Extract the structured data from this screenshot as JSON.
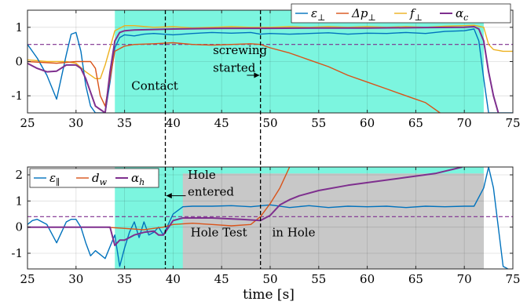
{
  "figure": {
    "xlabel": "time [s]",
    "x_tick_labels": [
      "25",
      "30",
      "35",
      "40",
      "45",
      "50",
      "55",
      "60",
      "65",
      "70",
      "75"
    ],
    "markers": [
      {
        "x": 39.2,
        "color": "#000000"
      },
      {
        "x": 49.0,
        "color": "#000000"
      }
    ],
    "colors": {
      "contact_region": "#7cf5df",
      "hole_region": "#c8c8c8",
      "blue": "#0072bd",
      "orange": "#d95319",
      "yellow": "#edb120",
      "purple": "#7e2f8e",
      "threshold": "#7e2f8e"
    }
  },
  "chart_data": [
    {
      "type": "line",
      "xlim": [
        25,
        75
      ],
      "ylim": [
        -1.5,
        1.5
      ],
      "y_ticks": [
        -1,
        0,
        1
      ],
      "y_tick_labels": [
        "-1",
        "0",
        "1"
      ],
      "grid": true,
      "legend_position": "top-right",
      "shaded_regions": [
        {
          "x": [
            34,
            72
          ],
          "color": "contact_region"
        }
      ],
      "threshold": {
        "y": 0.5,
        "style": "dashed"
      },
      "annotations": [
        {
          "text": "Contact",
          "x": 35.7,
          "y": -0.82
        },
        {
          "text": "screwing",
          "x": 44.1,
          "y": 0.22
        },
        {
          "text": "started",
          "x": 44.1,
          "y": -0.3
        }
      ],
      "arrows": [
        {
          "from": [
            47.6,
            -0.4
          ],
          "to": [
            48.9,
            -0.4
          ]
        }
      ],
      "series": [
        {
          "name": "ε⊥",
          "color": "blue",
          "x": [
            25,
            26,
            27,
            28,
            29,
            29.5,
            30,
            30.5,
            31,
            31.5,
            32,
            33,
            33.5,
            34,
            34.5,
            35,
            36,
            37,
            38,
            39,
            40,
            42,
            44,
            46,
            48,
            49,
            50,
            52,
            54,
            56,
            58,
            60,
            62,
            64,
            66,
            68,
            70,
            71,
            71.5,
            72,
            72.5,
            73,
            74,
            75
          ],
          "y": [
            0.5,
            0.1,
            -0.4,
            -1.1,
            0.2,
            0.8,
            0.85,
            0.3,
            -0.7,
            -1.3,
            -1.5,
            -1.5,
            -0.6,
            0.4,
            0.7,
            0.78,
            0.75,
            0.8,
            0.82,
            0.8,
            0.78,
            0.82,
            0.85,
            0.83,
            0.85,
            0.8,
            0.82,
            0.8,
            0.82,
            0.84,
            0.8,
            0.83,
            0.82,
            0.85,
            0.82,
            0.88,
            0.9,
            0.95,
            0.6,
            -0.5,
            -1.5,
            -1.5,
            -1.5,
            -1.5
          ]
        },
        {
          "name": "Δp⊥",
          "color": "orange",
          "x": [
            25,
            28,
            30,
            31.5,
            32,
            32.5,
            33,
            33.5,
            34,
            35,
            36,
            38,
            40,
            42,
            44,
            46,
            48,
            49,
            50,
            52,
            54,
            56,
            58,
            60,
            62,
            64,
            66,
            67.5
          ],
          "y": [
            0,
            -0.05,
            0,
            0,
            -0.2,
            -1.0,
            -1.3,
            -0.5,
            0.3,
            0.45,
            0.5,
            0.52,
            0.55,
            0.5,
            0.48,
            0.5,
            0.52,
            0.5,
            0.4,
            0.25,
            0.05,
            -0.15,
            -0.4,
            -0.6,
            -0.8,
            -1.0,
            -1.2,
            -1.5
          ]
        },
        {
          "name": "f⊥",
          "color": "yellow",
          "x": [
            25,
            27,
            29,
            30,
            31,
            32,
            32.5,
            33,
            33.5,
            34,
            35,
            36,
            38,
            40,
            42,
            44,
            46,
            48,
            50,
            52,
            54,
            56,
            58,
            60,
            62,
            64,
            66,
            68,
            70,
            71,
            72,
            72.5,
            73,
            74,
            75
          ],
          "y": [
            0.05,
            0,
            0,
            -0.05,
            -0.3,
            -0.5,
            -0.5,
            -0.1,
            0.4,
            0.9,
            1.05,
            1.05,
            1.0,
            1.02,
            0.98,
            1.0,
            1.02,
            1.0,
            1.0,
            1.02,
            1.0,
            1.02,
            1.0,
            1.02,
            1.0,
            1.02,
            1.0,
            1.03,
            1.05,
            1.06,
            1.0,
            0.5,
            0.35,
            0.3,
            0.3
          ]
        },
        {
          "name": "αc",
          "color": "purple",
          "x": [
            25,
            26,
            27,
            28,
            29,
            30,
            30.5,
            31,
            32,
            33,
            33.5,
            34,
            34.5,
            35,
            36,
            40,
            45,
            50,
            55,
            60,
            65,
            70,
            71,
            71.5,
            72,
            72.5,
            73,
            73.5
          ],
          "y": [
            -0.05,
            -0.2,
            -0.3,
            -0.28,
            -0.1,
            -0.1,
            -0.2,
            -0.5,
            -1.3,
            -1.5,
            -0.3,
            0.6,
            0.85,
            0.9,
            0.92,
            0.95,
            0.97,
            0.97,
            0.98,
            0.98,
            0.99,
            1.0,
            1.02,
            0.95,
            0.6,
            -0.3,
            -1.0,
            -1.5
          ]
        }
      ]
    },
    {
      "type": "line",
      "xlim": [
        25,
        75
      ],
      "ylim": [
        -1.6,
        2.3
      ],
      "y_ticks": [
        -1,
        0,
        1,
        2
      ],
      "y_tick_labels": [
        "-1",
        "0",
        "1",
        "2"
      ],
      "grid": true,
      "legend_position": "top-left",
      "shaded_regions": [
        {
          "x": [
            34,
            72
          ],
          "color": "contact_region"
        },
        {
          "x": [
            41,
            72
          ],
          "y": [
            -1.6,
            2.05
          ],
          "color": "hole_region"
        },
        {
          "x": [
            47,
            72
          ],
          "y": [
            -1.6,
            2.05
          ],
          "color": "hole_region"
        }
      ],
      "threshold": {
        "y": 0.4,
        "style": "dashed"
      },
      "annotations": [
        {
          "text": "Hole",
          "x": 41.5,
          "y": 1.85
        },
        {
          "text": "entered",
          "x": 41.5,
          "y": 1.2
        },
        {
          "text": "Hole Test",
          "x": 41.8,
          "y": -0.35
        },
        {
          "text": "in Hole",
          "x": 50.2,
          "y": -0.35
        }
      ],
      "arrows": [
        {
          "from": [
            41.3,
            1.2
          ],
          "to": [
            39.3,
            1.2
          ]
        }
      ],
      "series": [
        {
          "name": "ε∥",
          "color": "blue",
          "x": [
            25,
            25.5,
            26,
            27,
            28,
            28.5,
            29,
            29.5,
            30,
            30.5,
            31,
            31.5,
            32,
            33,
            34,
            34.5,
            35,
            35.5,
            36,
            36.5,
            37,
            37.5,
            38,
            38.5,
            39,
            39.5,
            40,
            41,
            42,
            44,
            46,
            48,
            50,
            52,
            54,
            56,
            58,
            60,
            62,
            64,
            66,
            68,
            70,
            71,
            72,
            72.5,
            73,
            74,
            74.5
          ],
          "y": [
            0.1,
            0.25,
            0.3,
            0.1,
            -0.6,
            -0.2,
            0.2,
            0.3,
            0.3,
            0.0,
            -0.6,
            -1.1,
            -0.9,
            -1.2,
            -0.3,
            -1.5,
            -0.8,
            -0.2,
            0.2,
            -0.4,
            0.2,
            -0.3,
            -0.2,
            0.0,
            -0.3,
            0.1,
            0.5,
            0.78,
            0.8,
            0.8,
            0.82,
            0.78,
            0.85,
            0.75,
            0.82,
            0.75,
            0.8,
            0.78,
            0.8,
            0.75,
            0.8,
            0.78,
            0.8,
            0.8,
            1.5,
            2.3,
            1.5,
            -1.5,
            -1.6
          ]
        },
        {
          "name": "dw",
          "color": "orange",
          "x": [
            25,
            30,
            33,
            35,
            37,
            38,
            39,
            40,
            42,
            44,
            46,
            48,
            49,
            50,
            51,
            52
          ],
          "y": [
            0,
            0,
            0,
            -0.05,
            -0.1,
            -0.05,
            0,
            0.1,
            0.15,
            0.1,
            0.05,
            0.1,
            0.4,
            0.9,
            1.5,
            2.3
          ]
        },
        {
          "name": "αh",
          "color": "purple",
          "x": [
            25,
            33.5,
            34,
            34.5,
            35,
            36,
            37,
            38,
            38.5,
            39,
            40,
            41,
            44,
            47,
            49,
            50,
            51,
            52,
            53,
            55,
            58,
            61,
            64,
            67,
            69.8
          ],
          "y": [
            0,
            0,
            -0.7,
            -0.5,
            -0.5,
            -0.3,
            -0.2,
            -0.15,
            -0.3,
            -0.3,
            0.25,
            0.35,
            0.35,
            0.3,
            0.25,
            0.45,
            0.85,
            1.05,
            1.2,
            1.4,
            1.6,
            1.75,
            1.9,
            2.05,
            2.3
          ]
        }
      ]
    }
  ]
}
